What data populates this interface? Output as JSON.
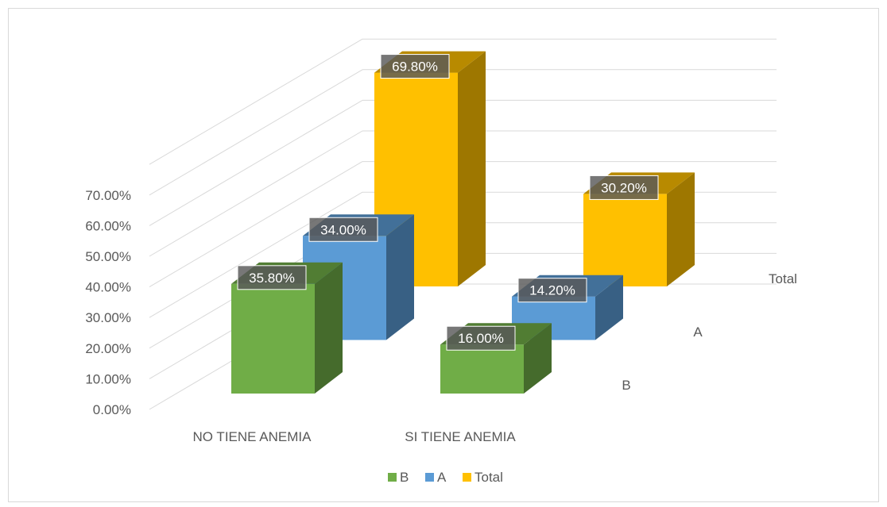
{
  "chart_data": {
    "type": "bar",
    "title": "",
    "xlabel": "",
    "ylabel": "",
    "categories": [
      "NO TIENE ANEMIA",
      "SI TIENE ANEMIA"
    ],
    "series": [
      {
        "name": "B",
        "values": [
          0.358,
          0.16
        ],
        "labels": [
          "35.80%",
          "16.00%"
        ],
        "color": "#70AD47"
      },
      {
        "name": "A",
        "values": [
          0.34,
          0.142
        ],
        "labels": [
          "34.00%",
          "14.20%"
        ],
        "color": "#5B9BD5"
      },
      {
        "name": "Total",
        "values": [
          0.698,
          0.302
        ],
        "labels": [
          "69.80%",
          "30.20%"
        ],
        "color": "#FFC000"
      }
    ],
    "y_ticks": [
      "0.00%",
      "10.00%",
      "20.00%",
      "30.00%",
      "40.00%",
      "50.00%",
      "60.00%",
      "70.00%"
    ],
    "ylim": [
      0,
      0.7
    ],
    "grid": true,
    "legend_position": "bottom",
    "three_d": true,
    "border_color": "#D9D9D9",
    "grid_color": "#D9D9D9",
    "label_box_color": "#595959"
  }
}
